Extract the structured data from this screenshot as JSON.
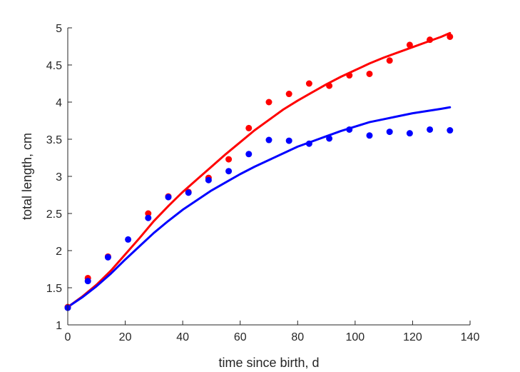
{
  "chart_data": {
    "type": "scatter",
    "title": "",
    "xlabel": "time since birth, d",
    "ylabel": "total length, cm",
    "xlim": [
      0,
      140
    ],
    "ylim": [
      1,
      5
    ],
    "xticks": [
      0,
      20,
      40,
      60,
      80,
      100,
      120,
      140
    ],
    "yticks": [
      1,
      1.5,
      2,
      2.5,
      3,
      3.5,
      4,
      4.5,
      5
    ],
    "grid": false,
    "box": false,
    "series": [
      {
        "color": "#ff0000",
        "kind": "points",
        "x": [
          0,
          7,
          14,
          28,
          35,
          42,
          49,
          56,
          63,
          70,
          77,
          84,
          91,
          98,
          105,
          112,
          119,
          126,
          133
        ],
        "y": [
          1.24,
          1.63,
          1.92,
          2.5,
          2.73,
          2.79,
          2.98,
          3.23,
          3.65,
          4.0,
          4.11,
          4.25,
          4.22,
          4.36,
          4.38,
          4.56,
          4.77,
          4.84,
          4.88
        ]
      },
      {
        "color": "#0000ff",
        "kind": "points",
        "x": [
          0,
          7,
          14,
          21,
          28,
          35,
          42,
          49,
          56,
          63,
          70,
          77,
          84,
          91,
          98,
          105,
          112,
          119,
          126,
          133
        ],
        "y": [
          1.23,
          1.59,
          1.91,
          2.15,
          2.44,
          2.72,
          2.78,
          2.95,
          3.07,
          3.3,
          3.49,
          3.48,
          3.44,
          3.51,
          3.63,
          3.55,
          3.6,
          3.58,
          3.63,
          3.62
        ]
      },
      {
        "color": "#ff0000",
        "kind": "line",
        "x": [
          0,
          5,
          10,
          15,
          20,
          25,
          30,
          35,
          40,
          45,
          50,
          55,
          60,
          65,
          70,
          75,
          80,
          85,
          90,
          95,
          100,
          105,
          110,
          115,
          120,
          125,
          130,
          133
        ],
        "y": [
          1.24,
          1.38,
          1.54,
          1.73,
          1.95,
          2.17,
          2.4,
          2.6,
          2.79,
          2.96,
          3.13,
          3.3,
          3.46,
          3.62,
          3.76,
          3.9,
          4.02,
          4.13,
          4.24,
          4.34,
          4.43,
          4.52,
          4.6,
          4.67,
          4.74,
          4.81,
          4.88,
          4.93
        ]
      },
      {
        "color": "#0000ff",
        "kind": "line",
        "x": [
          0,
          5,
          10,
          15,
          20,
          25,
          30,
          35,
          40,
          45,
          50,
          55,
          60,
          65,
          70,
          75,
          80,
          85,
          90,
          95,
          100,
          105,
          110,
          115,
          120,
          125,
          130,
          133
        ],
        "y": [
          1.24,
          1.37,
          1.52,
          1.69,
          1.88,
          2.06,
          2.24,
          2.4,
          2.55,
          2.68,
          2.81,
          2.92,
          3.03,
          3.13,
          3.22,
          3.31,
          3.4,
          3.47,
          3.54,
          3.61,
          3.67,
          3.73,
          3.77,
          3.81,
          3.85,
          3.88,
          3.91,
          3.93
        ]
      }
    ]
  }
}
